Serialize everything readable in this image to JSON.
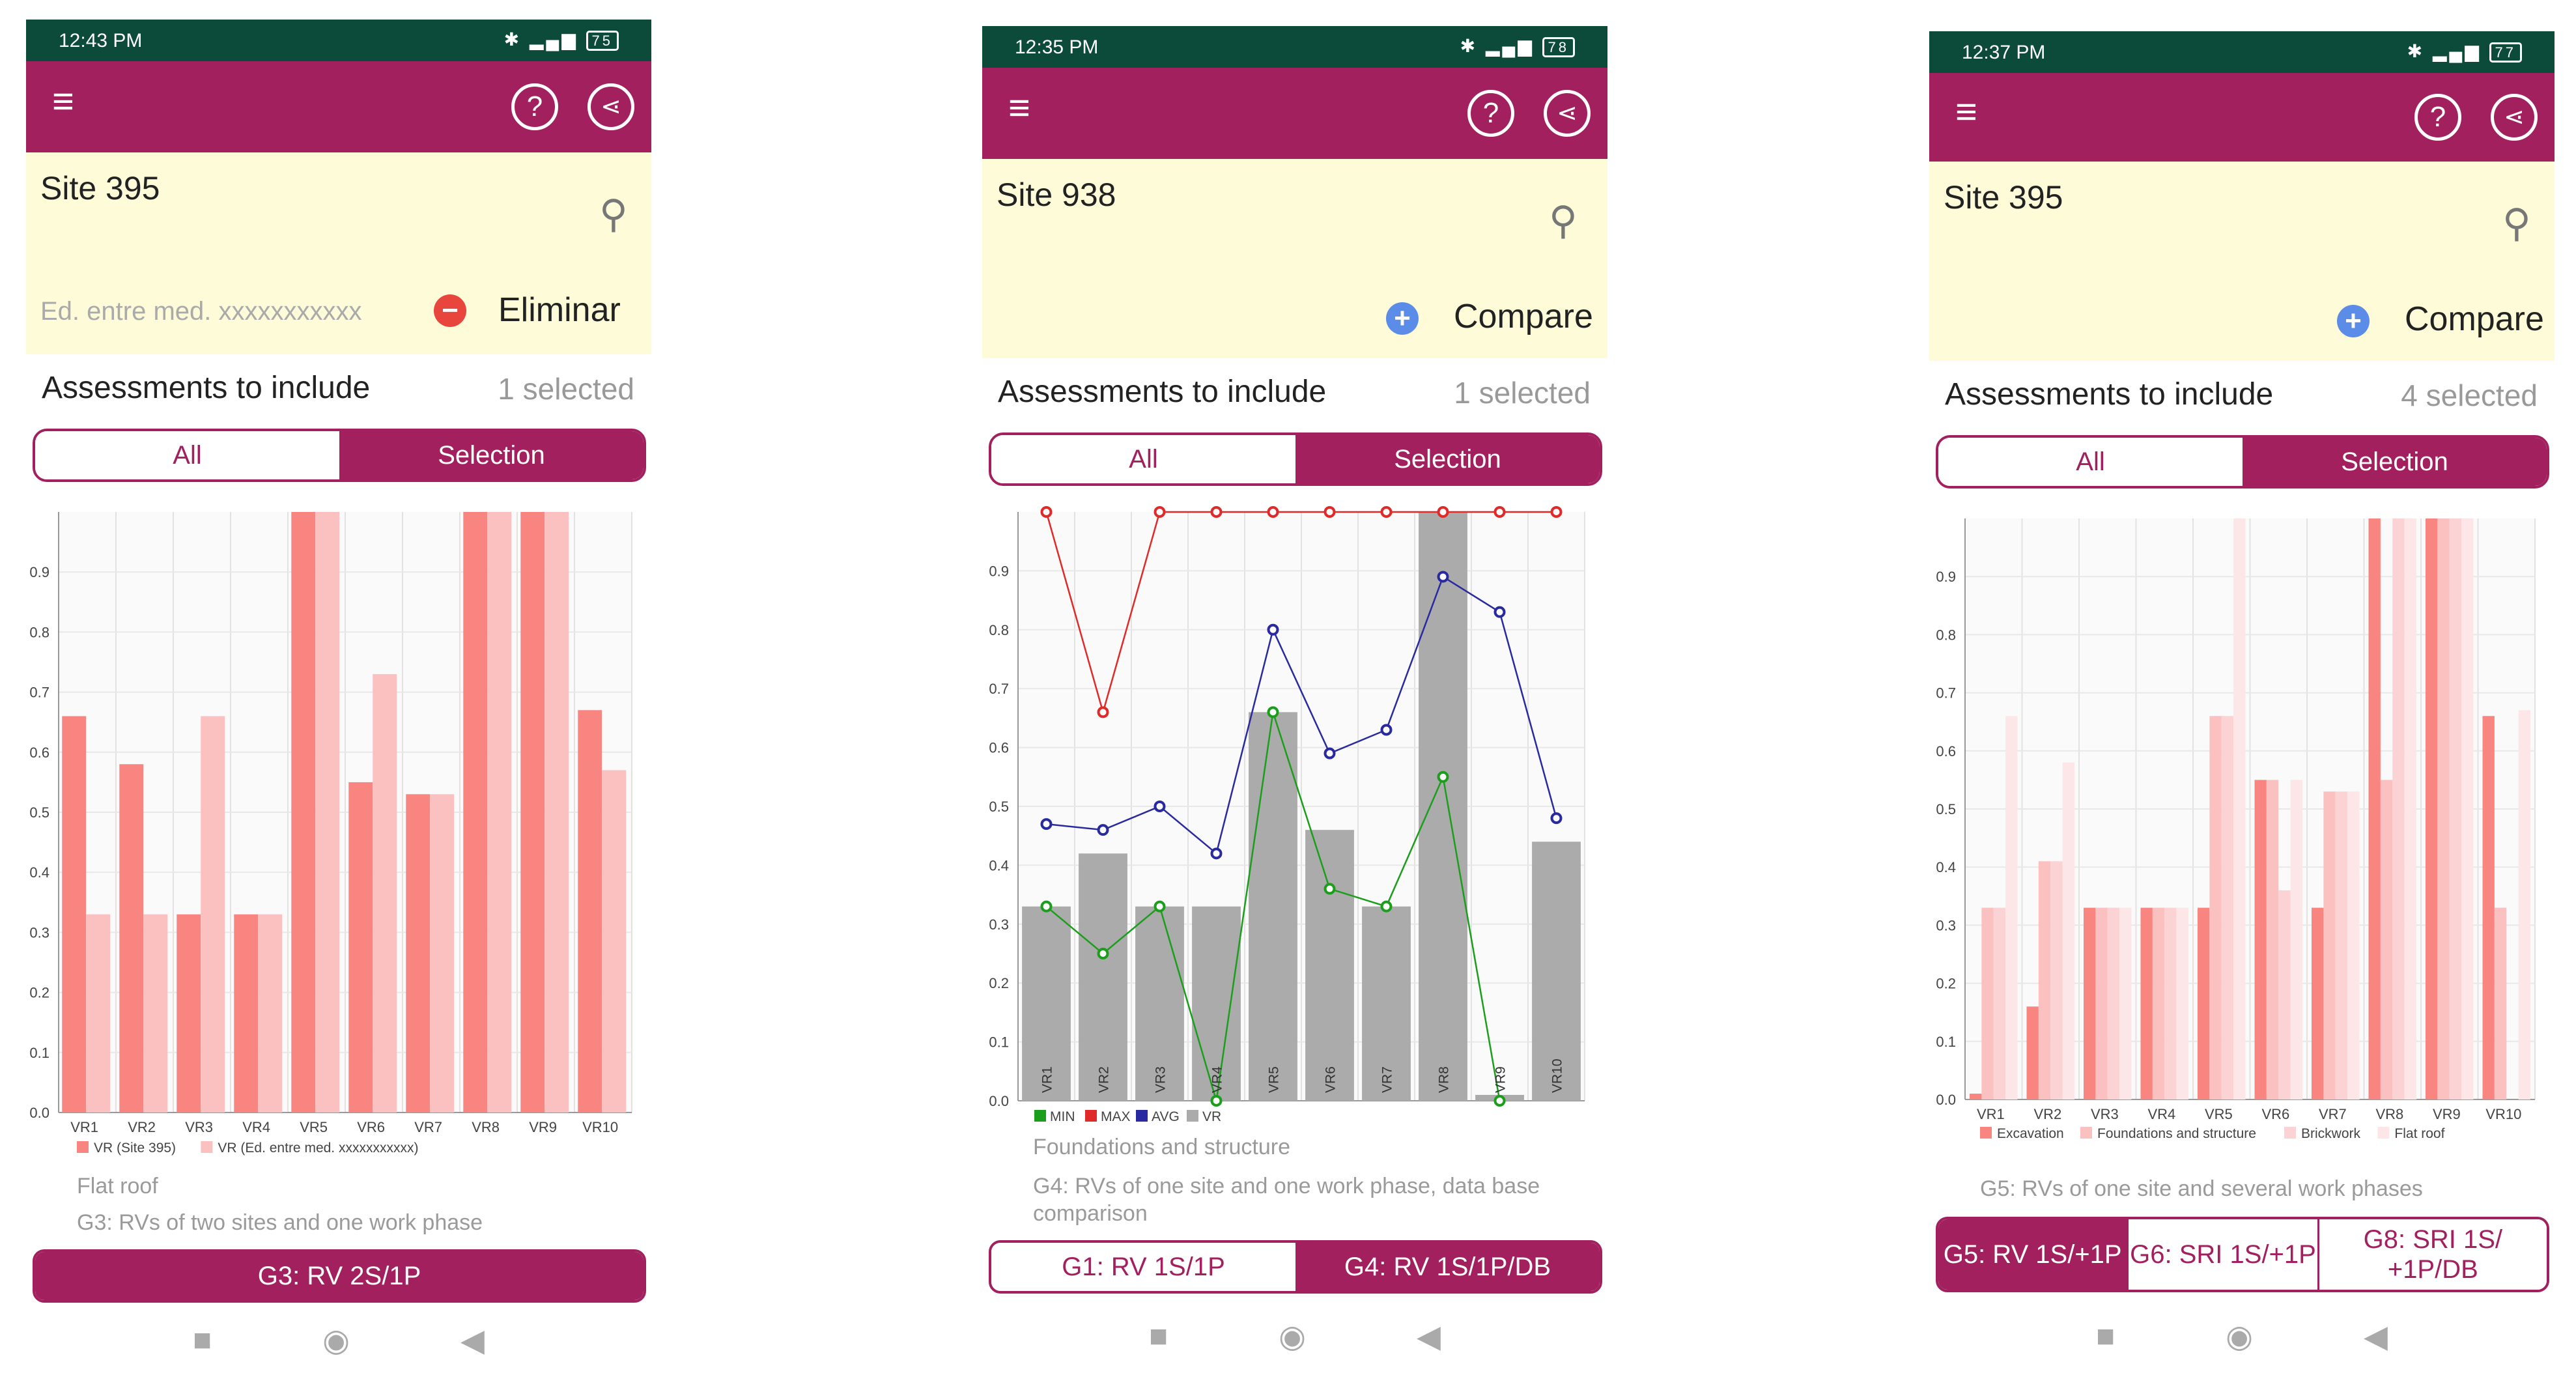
{
  "icons": {
    "menu": "menu-icon",
    "help": "help-icon",
    "share": "share-icon",
    "pin": "location-pin-icon",
    "remove": "minus-circle-icon",
    "add": "plus-circle-icon",
    "nav_back": "nav-back-icon",
    "nav_home": "nav-home-icon",
    "nav_recent": "nav-recent-icon"
  },
  "colors": {
    "appbar": "#a3205f",
    "statusbar": "#0c4a3a",
    "sitebox": "#fdfbd8",
    "s1": "#f88580",
    "s2": "#fbc0c0",
    "s3": "#fcd3d5",
    "s4": "#fde6e8",
    "bar_gray": "#ababab",
    "min": "#1b9e1b",
    "max": "#e02a2a",
    "avg": "#2a2aa0"
  },
  "common": {
    "assessments_label": "Assessments to include",
    "seg_all": "All",
    "seg_selection": "Selection"
  },
  "phones": [
    {
      "time": "12:43 PM",
      "battery": "75",
      "site": "Site 395",
      "hint": "Ed. entre med. xxxxxxxxxxx",
      "action": "Eliminar",
      "selected": "1 selected",
      "legend": [
        "VR (Site 395)",
        "VR (Ed. entre med. xxxxxxxxxxx)"
      ],
      "phase_caption": "Flat roof",
      "caption": "G3: RVs of two sites and one work phase",
      "buttons": [
        "G3: RV 2S/1P"
      ],
      "chart_data": {
        "type": "bar",
        "categories": [
          "VR1",
          "VR2",
          "VR3",
          "VR4",
          "VR5",
          "VR6",
          "VR7",
          "VR8",
          "VR9",
          "VR10"
        ],
        "series": [
          {
            "name": "VR (Site 395)",
            "values": [
              0.66,
              0.58,
              0.33,
              0.33,
              1.0,
              0.55,
              0.53,
              1.0,
              1.0,
              0.67
            ]
          },
          {
            "name": "VR (Ed. entre med. xxxxxxxxxxx)",
            "values": [
              0.33,
              0.33,
              0.66,
              0.33,
              1.0,
              0.73,
              0.53,
              1.0,
              1.0,
              0.57
            ]
          }
        ],
        "yticks": [
          "0.0",
          "0.1",
          "0.2",
          "0.3",
          "0.4",
          "0.5",
          "0.6",
          "0.7",
          "0.8",
          "0.9"
        ],
        "ylim": [
          0,
          1
        ],
        "grid": true,
        "legend_position": "bottom-left"
      }
    },
    {
      "time": "12:35 PM",
      "battery": "78",
      "site": "Site 938",
      "action": "Compare",
      "selected": "1 selected",
      "legend": [
        "MIN",
        "MAX",
        "AVG",
        "VR"
      ],
      "phase_caption": "Foundations and structure",
      "caption": "G4: RVs of one site and one work phase, data base comparison",
      "buttons": [
        "G1: RV 1S/1P",
        "G4: RV 1S/1P/DB"
      ],
      "chart_data": {
        "type": "bar",
        "categories": [
          "VR1",
          "VR2",
          "VR3",
          "VR4",
          "VR5",
          "VR6",
          "VR7",
          "VR8",
          "VR9",
          "VR10"
        ],
        "series": [
          {
            "name": "VR",
            "values": [
              0.33,
              0.42,
              0.33,
              0.33,
              0.66,
              0.46,
              0.33,
              1.0,
              0.01,
              0.44
            ]
          },
          {
            "name": "MIN",
            "values": [
              0.33,
              0.25,
              0.33,
              0.0,
              0.66,
              0.36,
              0.33,
              0.55,
              0.0,
              null
            ]
          },
          {
            "name": "MAX",
            "values": [
              1.0,
              0.66,
              1.0,
              1.0,
              1.0,
              1.0,
              1.0,
              1.0,
              1.0,
              1.0
            ]
          },
          {
            "name": "AVG",
            "values": [
              0.47,
              0.46,
              0.5,
              0.42,
              0.8,
              0.59,
              0.63,
              0.89,
              0.83,
              0.48
            ]
          }
        ],
        "yticks": [
          "0.0",
          "0.1",
          "0.2",
          "0.3",
          "0.4",
          "0.5",
          "0.6",
          "0.7",
          "0.8",
          "0.9"
        ],
        "ylim": [
          0,
          1
        ],
        "grid": true,
        "legend_position": "bottom-left"
      }
    },
    {
      "time": "12:37 PM",
      "battery": "77",
      "site": "Site 395",
      "action": "Compare",
      "selected": "4 selected",
      "legend": [
        "Excavation",
        "Foundations and structure",
        "Brickwork",
        "Flat roof"
      ],
      "caption": "G5: RVs of one site and several work phases",
      "buttons": [
        "G5: RV 1S/+1P",
        "G6: SRI 1S/+1P",
        "G8: SRI 1S/ +1P/DB"
      ],
      "chart_data": {
        "type": "bar",
        "categories": [
          "VR1",
          "VR2",
          "VR3",
          "VR4",
          "VR5",
          "VR6",
          "VR7",
          "VR8",
          "VR9",
          "VR10"
        ],
        "series": [
          {
            "name": "Excavation",
            "values": [
              0.01,
              0.16,
              0.33,
              0.33,
              0.33,
              0.55,
              0.33,
              1.0,
              1.0,
              0.66
            ]
          },
          {
            "name": "Foundations and structure",
            "values": [
              0.33,
              0.41,
              0.33,
              0.33,
              0.66,
              0.55,
              0.53,
              0.55,
              1.0,
              0.33
            ]
          },
          {
            "name": "Brickwork",
            "values": [
              0.33,
              0.41,
              0.33,
              0.33,
              0.66,
              0.36,
              0.53,
              1.0,
              1.0,
              0.0
            ]
          },
          {
            "name": "Flat roof",
            "values": [
              0.66,
              0.58,
              0.33,
              0.33,
              1.0,
              0.55,
              0.53,
              1.0,
              1.0,
              0.67
            ]
          }
        ],
        "yticks": [
          "0.0",
          "0.1",
          "0.2",
          "0.3",
          "0.4",
          "0.5",
          "0.6",
          "0.7",
          "0.8",
          "0.9"
        ],
        "ylim": [
          0,
          1
        ],
        "grid": true,
        "legend_position": "bottom-left"
      }
    }
  ]
}
